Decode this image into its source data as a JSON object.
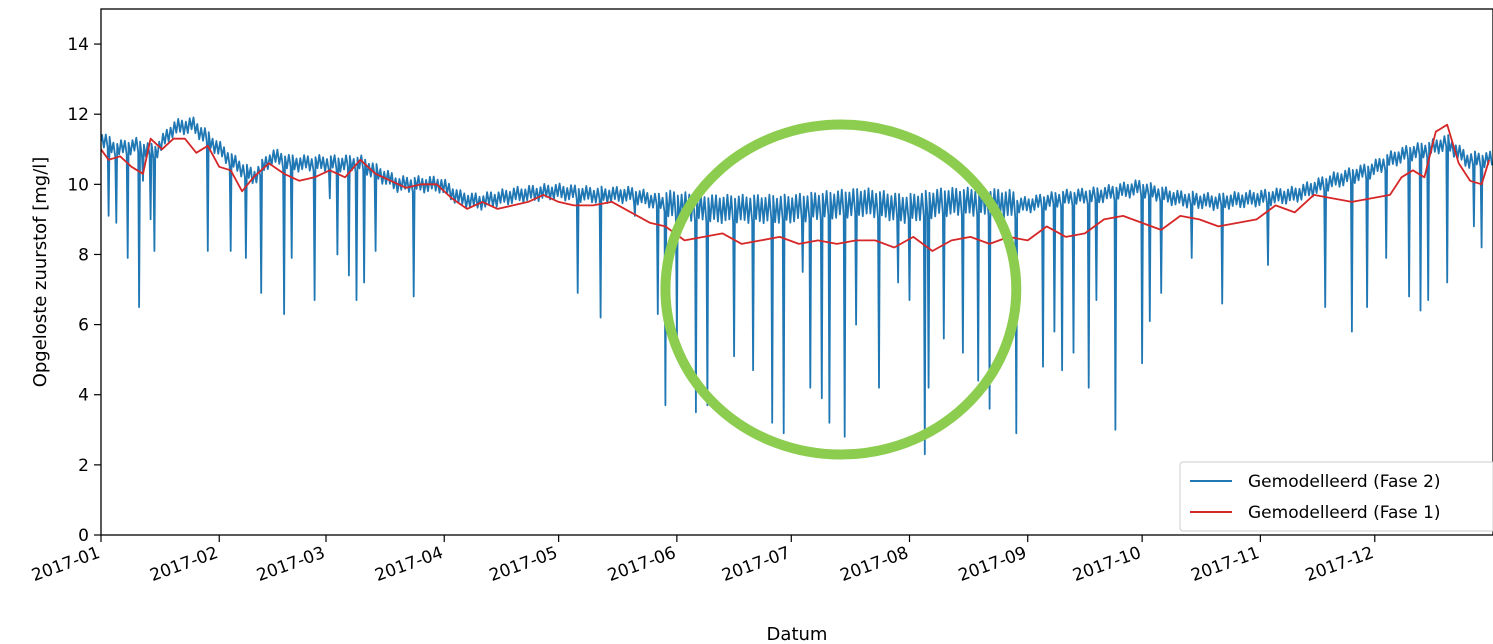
{
  "chart_data": {
    "type": "line",
    "title": "",
    "xlabel": "Datum",
    "ylabel": "Opgeloste zuurstof [mg/l]",
    "ylim": [
      0,
      15
    ],
    "xlim": [
      "2017-01-01",
      "2017-12-31"
    ],
    "y_ticks": [
      "0",
      "2",
      "4",
      "6",
      "8",
      "10",
      "12",
      "14"
    ],
    "x_ticks": [
      "2017-01",
      "2017-02",
      "2017-03",
      "2017-04",
      "2017-05",
      "2017-06",
      "2017-07",
      "2017-08",
      "2017-09",
      "2017-10",
      "2017-11",
      "2017-12"
    ],
    "grid": false,
    "legend_position": "lower-right",
    "highlight": {
      "shape": "circle",
      "color": "#8ccd4f",
      "from": "2017-05-29",
      "to": "2017-08-29"
    },
    "series": [
      {
        "name": "Gemodelleerd (Fase 2)",
        "color": "#1f77b4",
        "baseline_x": [
          "2017-01-01",
          "2017-01-05",
          "2017-01-10",
          "2017-01-15",
          "2017-01-20",
          "2017-01-25",
          "2017-01-31",
          "2017-02-05",
          "2017-02-10",
          "2017-02-15",
          "2017-02-20",
          "2017-02-28",
          "2017-03-05",
          "2017-03-10",
          "2017-03-15",
          "2017-03-20",
          "2017-03-31",
          "2017-04-05",
          "2017-04-10",
          "2017-04-15",
          "2017-04-20",
          "2017-04-30",
          "2017-05-10",
          "2017-05-20",
          "2017-05-31",
          "2017-06-10",
          "2017-06-20",
          "2017-06-30",
          "2017-07-10",
          "2017-07-20",
          "2017-07-31",
          "2017-08-10",
          "2017-08-20",
          "2017-08-31",
          "2017-09-10",
          "2017-09-20",
          "2017-09-30",
          "2017-10-10",
          "2017-10-20",
          "2017-10-31",
          "2017-11-10",
          "2017-11-20",
          "2017-11-30",
          "2017-12-05",
          "2017-12-10",
          "2017-12-15",
          "2017-12-20",
          "2017-12-25",
          "2017-12-31"
        ],
        "baseline_y": [
          11.3,
          11.0,
          11.1,
          10.9,
          11.6,
          11.7,
          11.1,
          10.6,
          10.2,
          10.8,
          10.6,
          10.6,
          10.6,
          10.6,
          10.3,
          10.0,
          10.0,
          9.6,
          9.5,
          9.6,
          9.7,
          9.8,
          9.7,
          9.7,
          9.4,
          9.3,
          9.3,
          9.3,
          9.4,
          9.5,
          9.3,
          9.5,
          9.5,
          9.4,
          9.6,
          9.7,
          9.9,
          9.6,
          9.5,
          9.6,
          9.7,
          10.1,
          10.4,
          10.7,
          10.9,
          11.0,
          11.2,
          10.7,
          10.7
        ],
        "dips_x": [
          "2017-01-03",
          "2017-01-05",
          "2017-01-08",
          "2017-01-11",
          "2017-01-12",
          "2017-01-14",
          "2017-01-15",
          "2017-01-29",
          "2017-02-04",
          "2017-02-08",
          "2017-02-12",
          "2017-02-18",
          "2017-02-20",
          "2017-02-26",
          "2017-03-02",
          "2017-03-04",
          "2017-03-07",
          "2017-03-09",
          "2017-03-11",
          "2017-03-14",
          "2017-03-24",
          "2017-05-06",
          "2017-05-12",
          "2017-05-21",
          "2017-05-27",
          "2017-05-29",
          "2017-06-01",
          "2017-06-06",
          "2017-06-09",
          "2017-06-16",
          "2017-06-21",
          "2017-06-26",
          "2017-06-29",
          "2017-07-04",
          "2017-07-06",
          "2017-07-09",
          "2017-07-11",
          "2017-07-15",
          "2017-07-18",
          "2017-07-24",
          "2017-07-29",
          "2017-08-01",
          "2017-08-05",
          "2017-08-06",
          "2017-08-10",
          "2017-08-15",
          "2017-08-19",
          "2017-08-22",
          "2017-08-29",
          "2017-09-05",
          "2017-09-08",
          "2017-09-10",
          "2017-09-13",
          "2017-09-17",
          "2017-09-19",
          "2017-09-24",
          "2017-10-01",
          "2017-10-03",
          "2017-10-06",
          "2017-10-14",
          "2017-10-22",
          "2017-11-03",
          "2017-11-18",
          "2017-11-25",
          "2017-11-29",
          "2017-12-04",
          "2017-12-10",
          "2017-12-13",
          "2017-12-15",
          "2017-12-20",
          "2017-12-27",
          "2017-12-29"
        ],
        "dips_y": [
          9.1,
          8.9,
          7.9,
          6.5,
          10.1,
          9.0,
          8.1,
          8.1,
          8.1,
          7.9,
          6.9,
          6.3,
          7.9,
          6.7,
          9.6,
          8.0,
          7.4,
          6.7,
          7.2,
          8.1,
          6.8,
          6.9,
          6.2,
          9.1,
          6.3,
          3.7,
          5.5,
          3.5,
          3.7,
          5.1,
          4.7,
          3.2,
          2.9,
          7.5,
          4.2,
          3.9,
          3.2,
          2.8,
          6.0,
          4.2,
          7.2,
          6.7,
          2.3,
          4.2,
          5.6,
          5.2,
          4.4,
          3.6,
          2.9,
          4.8,
          5.8,
          4.7,
          5.2,
          4.2,
          6.7,
          3.0,
          4.9,
          6.1,
          6.9,
          7.9,
          6.6,
          7.7,
          6.5,
          5.8,
          6.5,
          7.9,
          6.8,
          6.4,
          6.7,
          7.2,
          8.8,
          8.2
        ]
      },
      {
        "name": "Gemodelleerd (Fase 1)",
        "color": "#d62728",
        "x": [
          "2017-01-01",
          "2017-01-03",
          "2017-01-06",
          "2017-01-09",
          "2017-01-12",
          "2017-01-14",
          "2017-01-17",
          "2017-01-20",
          "2017-01-23",
          "2017-01-26",
          "2017-01-29",
          "2017-02-01",
          "2017-02-04",
          "2017-02-07",
          "2017-02-10",
          "2017-02-14",
          "2017-02-18",
          "2017-02-22",
          "2017-02-26",
          "2017-03-02",
          "2017-03-06",
          "2017-03-10",
          "2017-03-14",
          "2017-03-18",
          "2017-03-22",
          "2017-03-26",
          "2017-03-30",
          "2017-04-03",
          "2017-04-07",
          "2017-04-11",
          "2017-04-15",
          "2017-04-19",
          "2017-04-23",
          "2017-04-27",
          "2017-05-01",
          "2017-05-05",
          "2017-05-10",
          "2017-05-15",
          "2017-05-20",
          "2017-05-25",
          "2017-05-29",
          "2017-06-03",
          "2017-06-08",
          "2017-06-13",
          "2017-06-18",
          "2017-06-23",
          "2017-06-28",
          "2017-07-03",
          "2017-07-08",
          "2017-07-13",
          "2017-07-18",
          "2017-07-23",
          "2017-07-28",
          "2017-08-02",
          "2017-08-07",
          "2017-08-12",
          "2017-08-17",
          "2017-08-22",
          "2017-08-27",
          "2017-09-01",
          "2017-09-06",
          "2017-09-11",
          "2017-09-16",
          "2017-09-21",
          "2017-09-26",
          "2017-10-01",
          "2017-10-06",
          "2017-10-11",
          "2017-10-16",
          "2017-10-21",
          "2017-10-26",
          "2017-10-31",
          "2017-11-05",
          "2017-11-10",
          "2017-11-15",
          "2017-11-20",
          "2017-11-25",
          "2017-11-30",
          "2017-12-05",
          "2017-12-08",
          "2017-12-11",
          "2017-12-14",
          "2017-12-17",
          "2017-12-20",
          "2017-12-23",
          "2017-12-26",
          "2017-12-29",
          "2017-12-31"
        ],
        "y": [
          11.0,
          10.7,
          10.8,
          10.5,
          10.3,
          11.3,
          11.0,
          11.3,
          11.3,
          10.9,
          11.1,
          10.5,
          10.4,
          9.8,
          10.2,
          10.6,
          10.3,
          10.1,
          10.2,
          10.4,
          10.2,
          10.7,
          10.3,
          10.1,
          9.9,
          10.0,
          10.0,
          9.6,
          9.3,
          9.5,
          9.3,
          9.4,
          9.5,
          9.7,
          9.5,
          9.4,
          9.4,
          9.5,
          9.2,
          8.9,
          8.8,
          8.4,
          8.5,
          8.6,
          8.3,
          8.4,
          8.5,
          8.3,
          8.4,
          8.3,
          8.4,
          8.4,
          8.2,
          8.5,
          8.1,
          8.4,
          8.5,
          8.3,
          8.5,
          8.4,
          8.8,
          8.5,
          8.6,
          9.0,
          9.1,
          8.9,
          8.7,
          9.1,
          9.0,
          8.8,
          8.9,
          9.0,
          9.4,
          9.2,
          9.7,
          9.6,
          9.5,
          9.6,
          9.7,
          10.2,
          10.4,
          10.2,
          11.5,
          11.7,
          10.6,
          10.1,
          10.0,
          10.7
        ]
      }
    ]
  }
}
